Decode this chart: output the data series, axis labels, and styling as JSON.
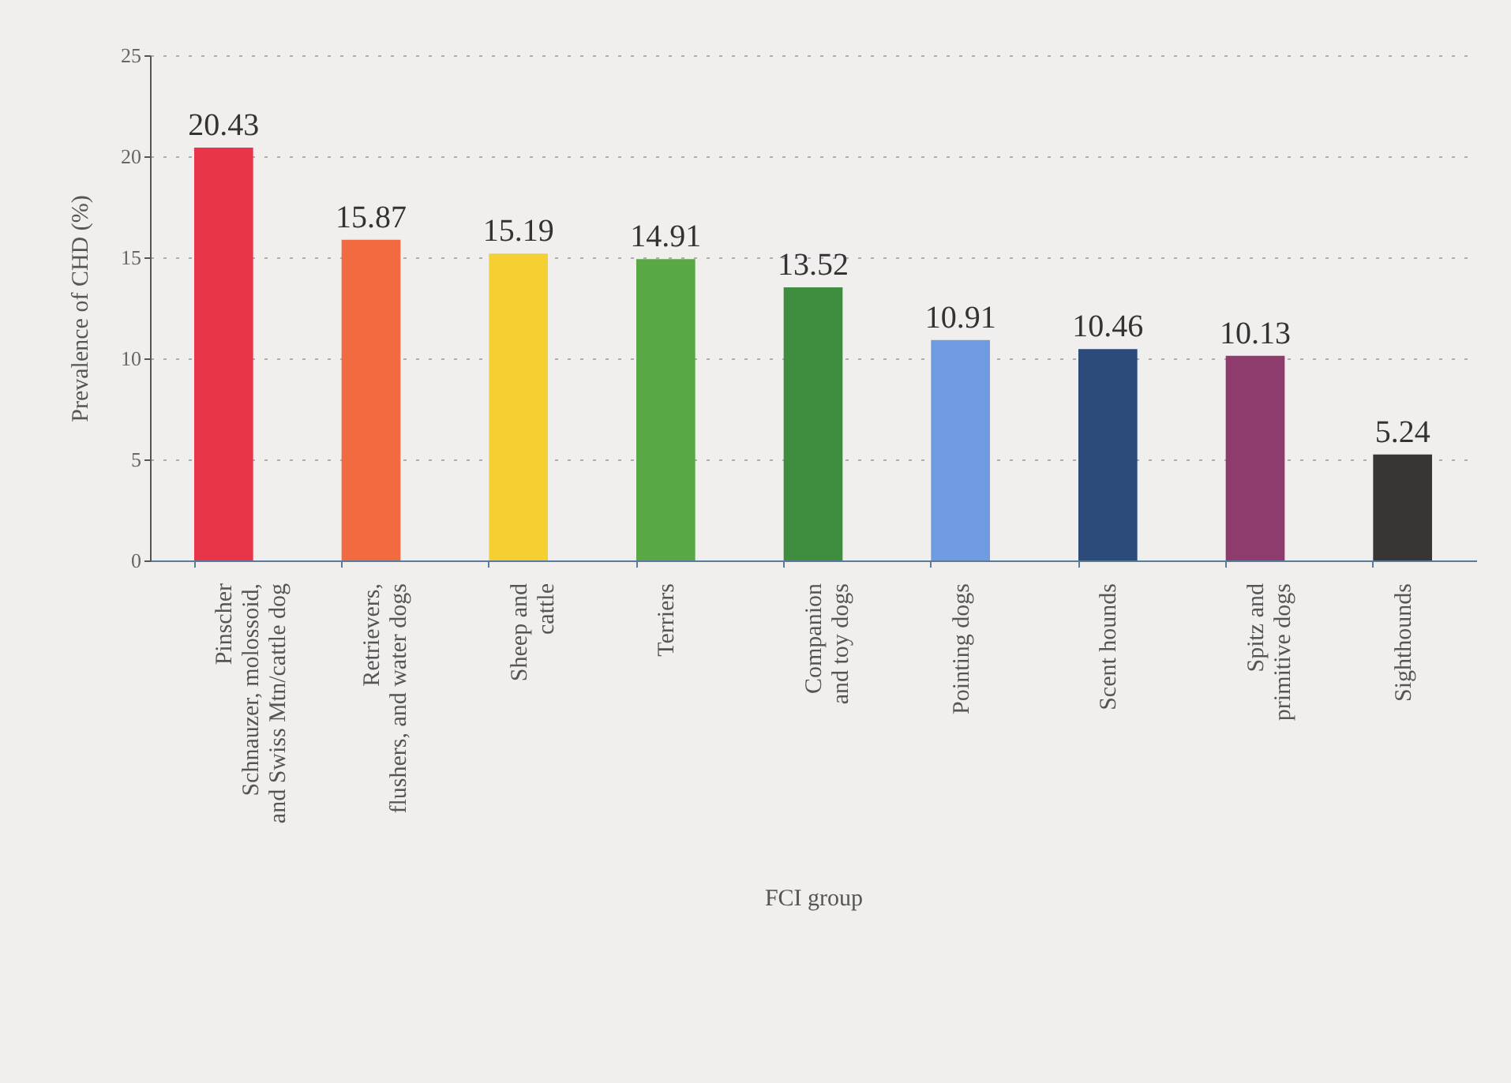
{
  "chart_data": {
    "type": "bar",
    "xlabel": "FCI group",
    "ylabel": "Prevalence of CHD (%)",
    "categories": [
      "Pinscher\nSchnauzer, molossoid,\nand Swiss Mtn/cattle dog",
      "Retrievers,\nflushers, and water dogs",
      "Sheep and\ncattle",
      "Terriers",
      "Companion\nand toy dogs",
      "Pointing dogs",
      "Scent hounds",
      "Spitz and\nprimitive dogs",
      "Sighthounds"
    ],
    "values": [
      20.43,
      15.87,
      15.19,
      14.91,
      13.52,
      10.91,
      10.46,
      10.13,
      5.24
    ],
    "colors": [
      "#e8354a",
      "#f26a3f",
      "#f5d033",
      "#5aa845",
      "#3f8d3f",
      "#6f9be0",
      "#2c4a7a",
      "#8e3b6e",
      "#3a3535"
    ],
    "ylim": [
      0,
      25
    ],
    "yticks": [
      0,
      5,
      10,
      15,
      20,
      25
    ],
    "grid": "y",
    "data_labels": true
  }
}
